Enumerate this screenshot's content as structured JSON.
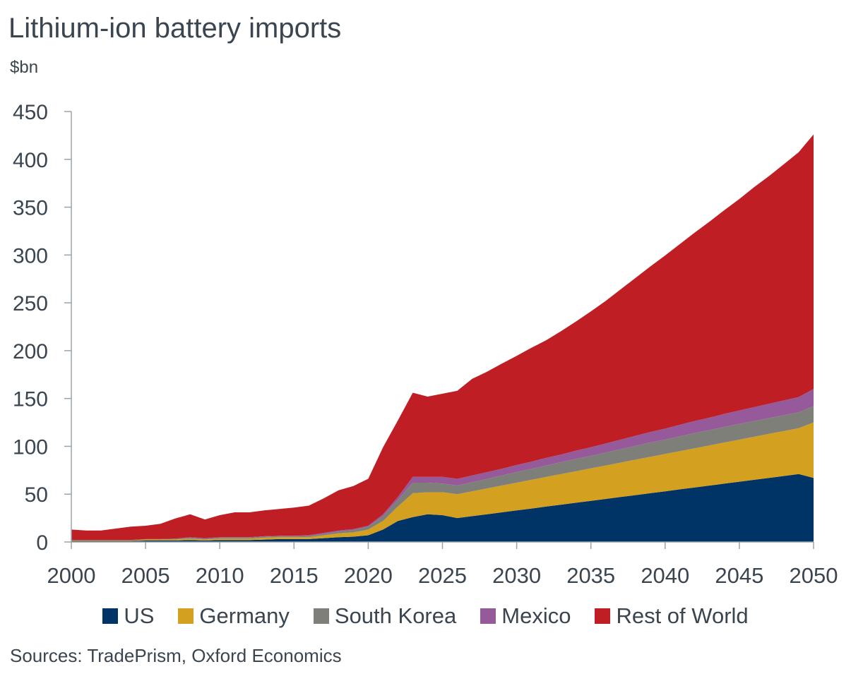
{
  "page": {
    "title": "Lithium-ion battery imports",
    "unit": "$bn",
    "source": "Sources: TradePrism, Oxford Economics"
  },
  "chart_data": {
    "type": "area",
    "title": "Lithium-ion battery imports",
    "ylabel": "$bn",
    "xlabel": "",
    "stacked": true,
    "xlim": [
      2000,
      2050
    ],
    "ylim": [
      0,
      450
    ],
    "x_ticks": [
      2000,
      2005,
      2010,
      2015,
      2020,
      2025,
      2030,
      2035,
      2040,
      2045,
      2050
    ],
    "y_ticks": [
      0,
      50,
      100,
      150,
      200,
      250,
      300,
      350,
      400,
      450
    ],
    "grid": false,
    "legend_position": "bottom",
    "x": [
      2000,
      2001,
      2002,
      2003,
      2004,
      2005,
      2006,
      2007,
      2008,
      2009,
      2010,
      2011,
      2012,
      2013,
      2014,
      2015,
      2016,
      2017,
      2018,
      2019,
      2020,
      2021,
      2022,
      2023,
      2024,
      2025,
      2026,
      2027,
      2028,
      2029,
      2030,
      2031,
      2032,
      2033,
      2034,
      2035,
      2036,
      2037,
      2038,
      2039,
      2040,
      2041,
      2042,
      2043,
      2044,
      2045,
      2046,
      2047,
      2048,
      2049,
      2050
    ],
    "series": [
      {
        "name": "US",
        "color": "#003366",
        "values": [
          1,
          1,
          1,
          1,
          1,
          1.5,
          1.5,
          1.5,
          2,
          1.5,
          2,
          2,
          2,
          2.5,
          3,
          3,
          3,
          4,
          5,
          5.5,
          7,
          13,
          22,
          26,
          29,
          28,
          25,
          27,
          29,
          31,
          33,
          35,
          37,
          39,
          41,
          43,
          45,
          47,
          49,
          51,
          53,
          55,
          57,
          59,
          61,
          63,
          65,
          67,
          69,
          71,
          67
        ]
      },
      {
        "name": "Germany",
        "color": "#d4a020",
        "values": [
          0.5,
          0.5,
          0.5,
          0.5,
          0.5,
          1,
          1,
          1,
          1.5,
          1,
          1.5,
          1.5,
          1.5,
          2,
          2,
          2,
          2,
          3,
          4,
          4.5,
          6,
          9,
          15,
          25,
          23,
          24,
          25,
          26,
          27,
          28,
          29,
          30,
          31,
          32,
          33,
          34,
          35,
          36,
          37,
          38,
          39,
          40,
          41,
          42,
          43,
          44,
          45,
          46,
          47,
          48,
          58
        ]
      },
      {
        "name": "South Korea",
        "color": "#7f7f7a",
        "values": [
          0.5,
          0.5,
          0.5,
          0.5,
          0.5,
          0.5,
          0.5,
          1,
          1,
          1,
          1,
          1,
          1,
          1,
          1,
          1,
          1.5,
          1.5,
          2,
          2.5,
          3,
          5,
          7,
          11,
          10,
          9,
          9,
          9.5,
          10,
          10.5,
          11,
          11.5,
          12,
          12.5,
          13,
          13,
          13.5,
          14,
          14.5,
          15,
          15,
          15.5,
          16,
          16,
          16.5,
          16.5,
          16.5,
          16.5,
          16.5,
          16.5,
          17
        ]
      },
      {
        "name": "Mexico",
        "color": "#96599a",
        "values": [
          0,
          0,
          0,
          0,
          0,
          0,
          0,
          0,
          0.5,
          0.5,
          0.5,
          0.5,
          0.5,
          0.5,
          0.5,
          0.5,
          0.5,
          1,
          1,
          1,
          1,
          2,
          3,
          6,
          6,
          7,
          7,
          7,
          7,
          7,
          7.5,
          7.5,
          8,
          8,
          8.5,
          9,
          9.5,
          10,
          10.5,
          11,
          11.5,
          12,
          12.5,
          13,
          13.5,
          14,
          14.5,
          15,
          15.5,
          16,
          18
        ]
      },
      {
        "name": "Rest of World",
        "color": "#be1e24",
        "values": [
          11,
          10,
          10,
          12,
          14,
          14,
          16,
          21,
          24,
          19.5,
          23,
          26,
          26,
          27,
          28,
          29.5,
          31,
          36,
          42,
          45,
          49,
          70,
          80,
          88,
          84,
          87,
          92,
          101,
          105,
          110,
          114,
          119,
          123,
          129,
          135,
          142,
          149,
          157,
          165,
          173,
          181,
          189,
          197,
          205,
          213,
          221,
          230,
          238,
          247,
          256,
          266
        ]
      }
    ]
  }
}
